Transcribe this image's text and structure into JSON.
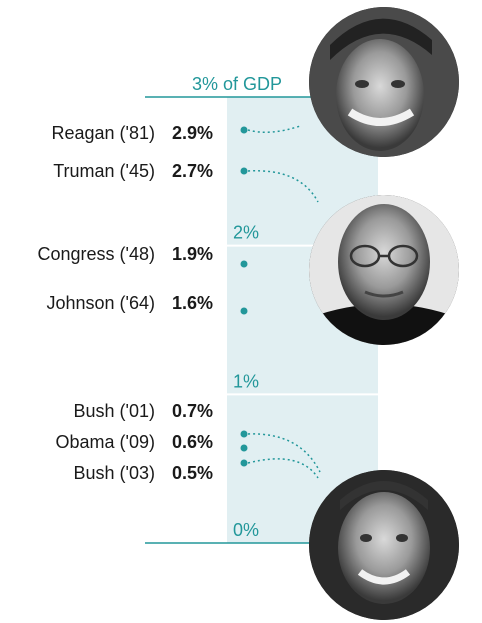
{
  "chart_data": {
    "type": "scatter",
    "ylabel": "",
    "ylim": [
      0,
      3
    ],
    "y_ticks": [
      "3% of GDP",
      "2%",
      "1%",
      "0%"
    ],
    "points": [
      {
        "name": "Reagan ('81)",
        "value": 2.9,
        "value_label": "2.9%",
        "portrait": "Reagan"
      },
      {
        "name": "Truman ('45)",
        "value": 2.7,
        "value_label": "2.7%",
        "portrait": "Truman"
      },
      {
        "name": "Congress ('48)",
        "value": 1.9,
        "value_label": "1.9%"
      },
      {
        "name": "Johnson ('64)",
        "value": 1.6,
        "value_label": "1.6%"
      },
      {
        "name": "Bush  ('01)",
        "value": 0.7,
        "value_label": "0.7%",
        "portrait": "Bush"
      },
      {
        "name": "Obama ('09)",
        "value": 0.6,
        "value_label": "0.6%"
      },
      {
        "name": "Bush ('03)",
        "value": 0.5,
        "value_label": "0.5%",
        "portrait": "Bush"
      }
    ],
    "portraits": [
      "Reagan",
      "Truman",
      "Bush"
    ],
    "grid": true
  },
  "colors": {
    "band": "#e1eff2",
    "accent": "#22979a",
    "text": "#1a1a1a"
  }
}
